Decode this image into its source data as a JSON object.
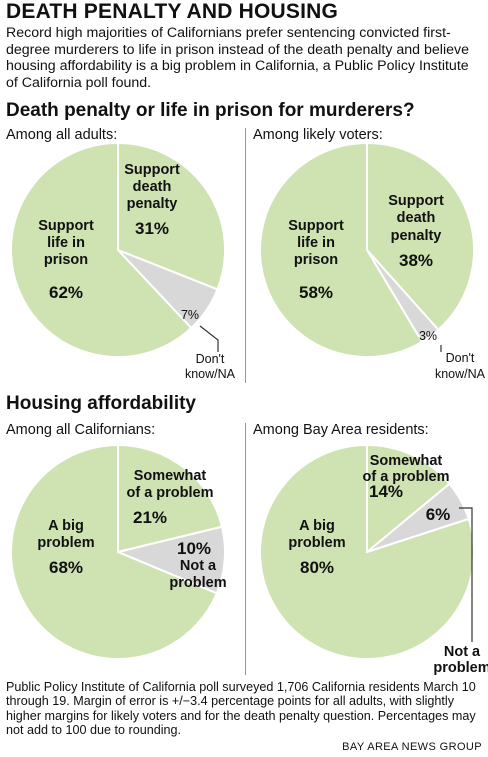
{
  "header": {
    "title": "DEATH PENALTY AND HOUSING",
    "intro": "Record high majorities of Californians prefer sentencing convicted first-degree murderers to life in prison instead of the death penalty and believe housing affordability is a big problem in California, a Public Policy Institute of California poll found."
  },
  "sections": {
    "death_penalty": "Death penalty or life in prison for murderers?",
    "housing": "Housing affordability"
  },
  "colors": {
    "green": "#cfe2b2",
    "gray": "#d8d8d8",
    "stroke": "#ffffff",
    "leader": "#333333"
  },
  "footer": {
    "note": "Public Policy Institute of California poll surveyed 1,706 California residents March 10 through 19. Margin of error is +/−3.4 percentage points for all adults, with slightly higher margins for likely voters and for the death penalty question. Percentages may not add to 100 due to rounding.",
    "credit": "BAY AREA NEWS GROUP"
  },
  "chart_data": [
    {
      "type": "pie",
      "title": "Among all adults:",
      "slices": [
        {
          "label": "Support death penalty",
          "value": 31,
          "display": "31%",
          "color": "green"
        },
        {
          "label": "Don't know/NA",
          "value": 7,
          "display": "7%",
          "color": "gray"
        },
        {
          "label": "Support life in prison",
          "value": 62,
          "display": "62%",
          "color": "green"
        }
      ]
    },
    {
      "type": "pie",
      "title": "Among likely voters:",
      "slices": [
        {
          "label": "Support death penalty",
          "value": 38,
          "display": "38%",
          "color": "green"
        },
        {
          "label": "Don't know/NA",
          "value": 3,
          "display": "3%",
          "color": "gray"
        },
        {
          "label": "Support life in prison",
          "value": 58,
          "display": "58%",
          "color": "green"
        }
      ]
    },
    {
      "type": "pie",
      "title": "Among all Californians:",
      "slices": [
        {
          "label": "Somewhat of a problem",
          "value": 21,
          "display": "21%",
          "color": "green"
        },
        {
          "label": "Not a problem",
          "value": 10,
          "display": "10%",
          "color": "gray"
        },
        {
          "label": "A big problem",
          "value": 68,
          "display": "68%",
          "color": "green"
        }
      ]
    },
    {
      "type": "pie",
      "title": "Among Bay Area residents:",
      "slices": [
        {
          "label": "Somewhat of a problem",
          "value": 14,
          "display": "14%",
          "color": "green"
        },
        {
          "label": "Not a problem",
          "value": 6,
          "display": "6%",
          "color": "gray"
        },
        {
          "label": "A big problem",
          "value": 80,
          "display": "80%",
          "color": "green"
        }
      ]
    }
  ]
}
